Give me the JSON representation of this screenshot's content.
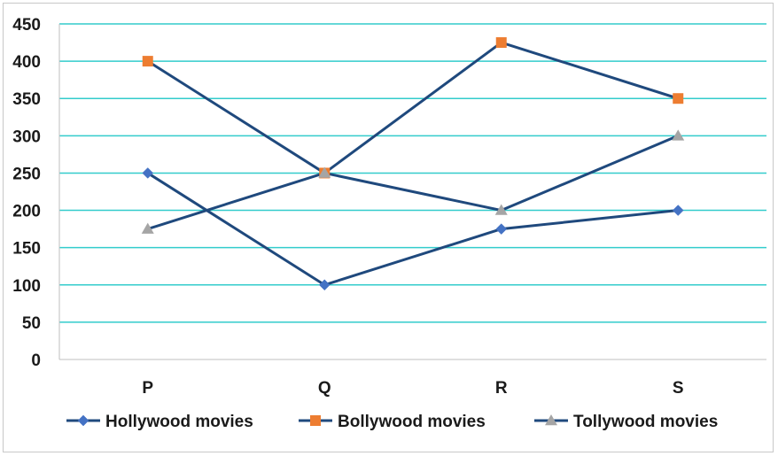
{
  "chart_data": {
    "type": "line",
    "categories": [
      "P",
      "Q",
      "R",
      "S"
    ],
    "ylim": [
      0,
      450
    ],
    "ytick_step": 50,
    "grid": true,
    "legend_position": "bottom",
    "series": [
      {
        "name": "Hollywood movies",
        "values": [
          250,
          100,
          175,
          200
        ],
        "line_color": "#1f497d",
        "marker": "diamond",
        "marker_color": "#4472c4"
      },
      {
        "name": "Bollywood movies",
        "values": [
          400,
          250,
          425,
          350
        ],
        "line_color": "#1f497d",
        "marker": "square",
        "marker_color": "#ed7d31"
      },
      {
        "name": "Tollywood movies",
        "values": [
          175,
          250,
          200,
          300
        ],
        "line_color": "#1f497d",
        "marker": "triangle",
        "marker_color": "#a5a5a5"
      }
    ],
    "gridline_color": "#33cccc"
  }
}
